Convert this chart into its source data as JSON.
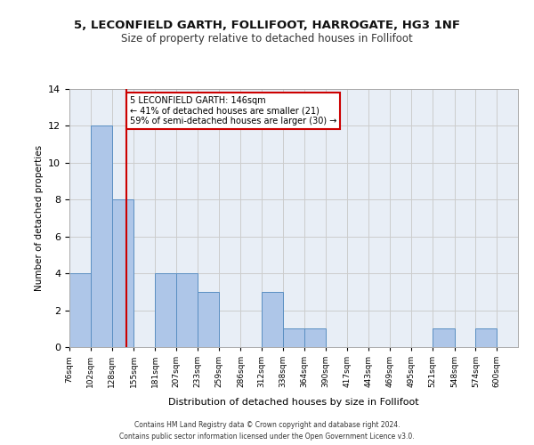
{
  "title1": "5, LECONFIELD GARTH, FOLLIFOOT, HARROGATE, HG3 1NF",
  "title2": "Size of property relative to detached houses in Follifoot",
  "xlabel": "Distribution of detached houses by size in Follifoot",
  "ylabel": "Number of detached properties",
  "bin_labels": [
    "76sqm",
    "102sqm",
    "128sqm",
    "155sqm",
    "181sqm",
    "207sqm",
    "233sqm",
    "259sqm",
    "286sqm",
    "312sqm",
    "338sqm",
    "364sqm",
    "390sqm",
    "417sqm",
    "443sqm",
    "469sqm",
    "495sqm",
    "521sqm",
    "548sqm",
    "574sqm",
    "600sqm"
  ],
  "bar_values": [
    4,
    12,
    8,
    0,
    4,
    4,
    3,
    0,
    0,
    3,
    1,
    1,
    0,
    0,
    0,
    0,
    0,
    1,
    0,
    1,
    0
  ],
  "bar_color": "#aec6e8",
  "bar_edge_color": "#5a8fc2",
  "vline_color": "#cc0000",
  "annotation_text": "5 LECONFIELD GARTH: 146sqm\n← 41% of detached houses are smaller (21)\n59% of semi-detached houses are larger (30) →",
  "annotation_box_color": "#ffffff",
  "annotation_box_edge": "#cc0000",
  "ylim": [
    0,
    14
  ],
  "yticks": [
    0,
    2,
    4,
    6,
    8,
    10,
    12,
    14
  ],
  "grid_color": "#cccccc",
  "bg_color": "#e8eef6",
  "footer_text": "Contains HM Land Registry data © Crown copyright and database right 2024.\nContains public sector information licensed under the Open Government Licence v3.0.",
  "bin_edges": [
    76,
    102,
    128,
    155,
    181,
    207,
    233,
    259,
    286,
    312,
    338,
    364,
    390,
    417,
    443,
    469,
    495,
    521,
    548,
    574,
    600,
    626
  ],
  "property_sqm": 146
}
